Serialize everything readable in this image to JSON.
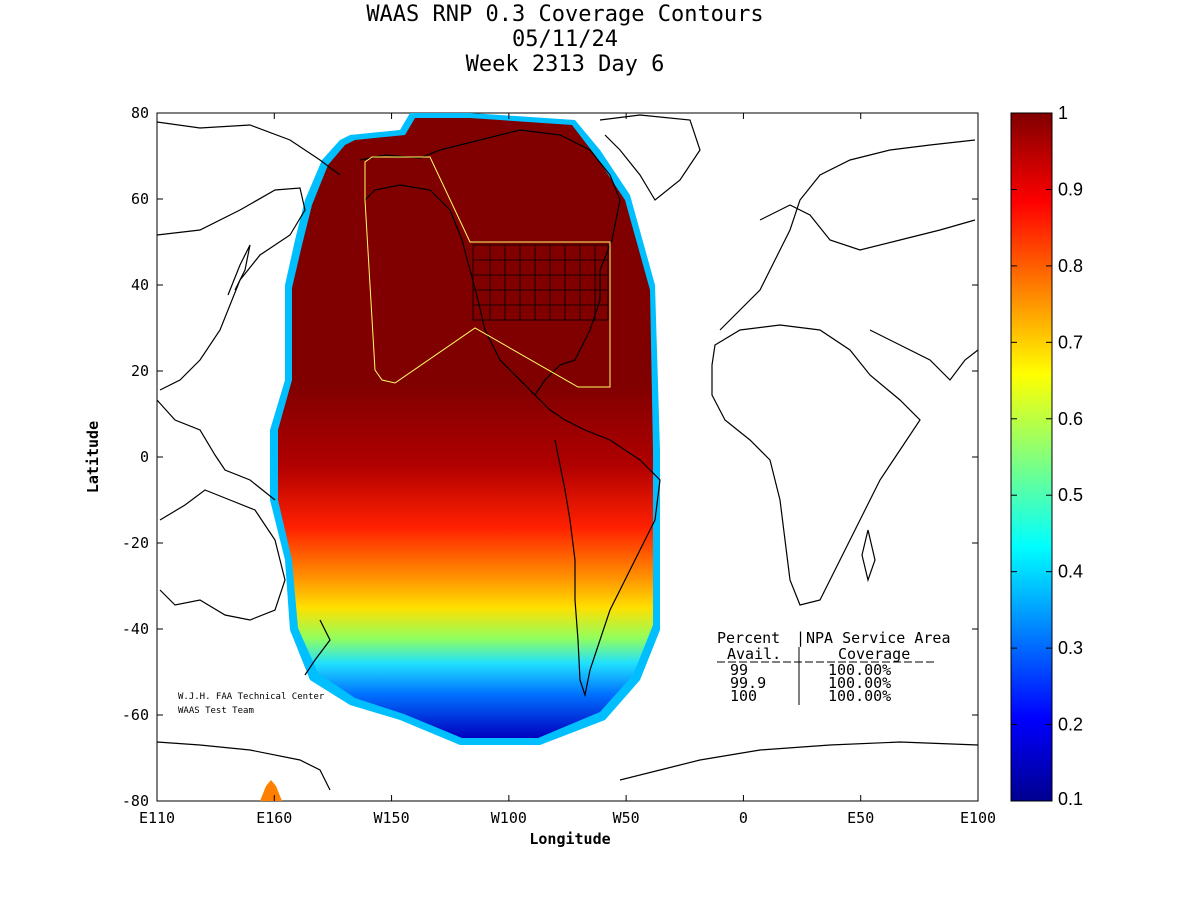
{
  "title_lines": [
    "WAAS RNP 0.3 Coverage Contours",
    "05/11/24",
    "Week 2313 Day 6"
  ],
  "chart_data": {
    "type": "heatmap",
    "xlabel": "Longitude",
    "ylabel": "Latitude",
    "xlim": [
      -250,
      100
    ],
    "ylim": [
      -80,
      80
    ],
    "xticks": [
      {
        "value": -250,
        "label": "E110"
      },
      {
        "value": -200,
        "label": "E160"
      },
      {
        "value": -150,
        "label": "W150"
      },
      {
        "value": -100,
        "label": "W100"
      },
      {
        "value": -50,
        "label": "W50"
      },
      {
        "value": 0,
        "label": "0"
      },
      {
        "value": 50,
        "label": "E50"
      },
      {
        "value": 100,
        "label": "E100"
      }
    ],
    "yticks": [
      {
        "value": 80,
        "label": "80"
      },
      {
        "value": 60,
        "label": "60"
      },
      {
        "value": 40,
        "label": "40"
      },
      {
        "value": 20,
        "label": "20"
      },
      {
        "value": 0,
        "label": "0"
      },
      {
        "value": -20,
        "label": "-20"
      },
      {
        "value": -40,
        "label": "-40"
      },
      {
        "value": -60,
        "label": "-60"
      },
      {
        "value": -80,
        "label": "-80"
      }
    ],
    "colorbar": {
      "min": 0.1,
      "max": 1.0,
      "ticks": [
        "1",
        "0.9",
        "0.8",
        "0.7",
        "0.6",
        "0.5",
        "0.4",
        "0.3",
        "0.2",
        "0.1"
      ],
      "colormap": "jet"
    },
    "coverage_fraction_levels": [
      {
        "level": 1.0,
        "region": "North America, North Pacific, Arctic, most of South America north of ~-20"
      },
      {
        "level": 0.9,
        "region": "band near equator to -20"
      },
      {
        "level": 0.7,
        "region": "band near -30"
      },
      {
        "level": 0.5,
        "region": "band near -40"
      },
      {
        "level": 0.3,
        "region": "band near -50"
      },
      {
        "level": 0.1,
        "region": "southern edge near -65"
      }
    ],
    "service_area_outline_color": "#ffff66",
    "table": {
      "headers": [
        "Percent",
        "NPA Service Area"
      ],
      "subheaders": [
        "Avail.",
        "Coverage"
      ],
      "rows": [
        {
          "avail": "99",
          "coverage": "100.00%"
        },
        {
          "avail": "99.9",
          "coverage": "100.00%"
        },
        {
          "avail": "100",
          "coverage": "100.00%"
        }
      ]
    },
    "credit": [
      "W.J.H. FAA Technical Center",
      "WAAS Test Team"
    ]
  }
}
